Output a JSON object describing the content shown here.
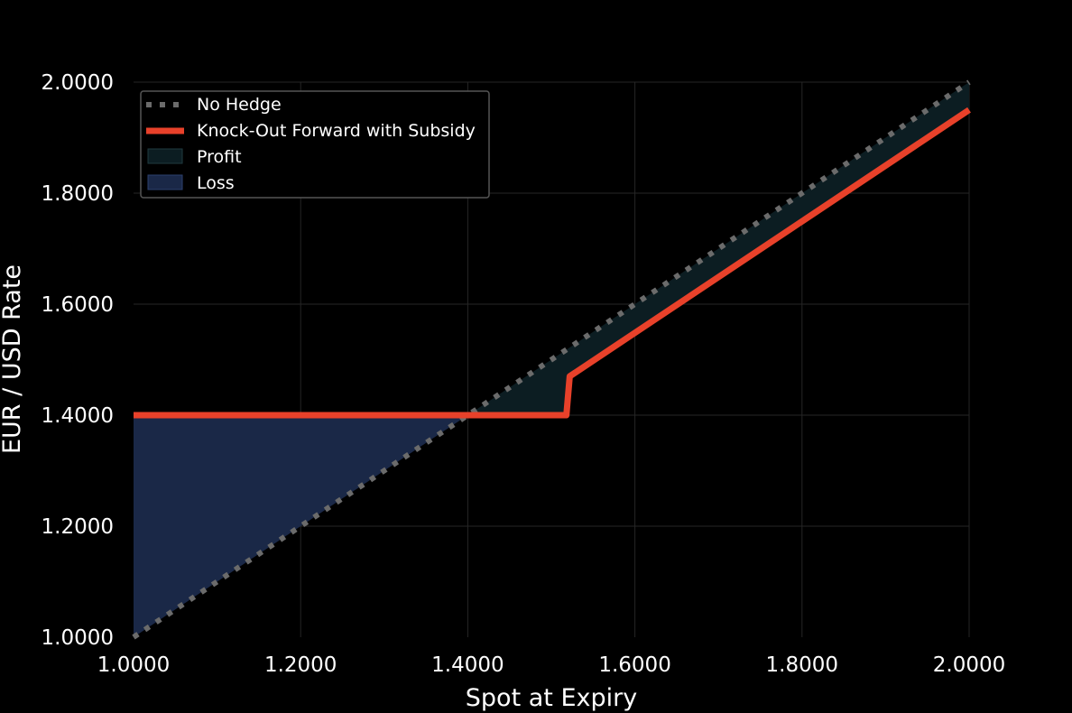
{
  "chart_data": {
    "type": "line",
    "title": "",
    "xlabel": "Spot at Expiry",
    "ylabel": "EUR / USD Rate",
    "xlim": [
      1.0,
      2.0
    ],
    "ylim": [
      1.0,
      2.0
    ],
    "x_ticks": [
      1.0,
      1.2,
      1.4,
      1.6,
      1.8,
      2.0
    ],
    "y_ticks": [
      1.0,
      1.2,
      1.4,
      1.6,
      1.8,
      2.0
    ],
    "x_tick_labels": [
      "1.0000",
      "1.2000",
      "1.4000",
      "1.6000",
      "1.8000",
      "2.0000"
    ],
    "y_tick_labels": [
      "1.0000",
      "1.2000",
      "1.4000",
      "1.6000",
      "1.8000",
      "2.0000"
    ],
    "grid": true,
    "legend_position": "top-left",
    "series": [
      {
        "name": "No Hedge",
        "style": "dotted",
        "color": "#6b6b6b",
        "x": [
          1.0,
          2.0
        ],
        "y": [
          1.0,
          2.0
        ]
      },
      {
        "name": "Knock-Out Forward with Subsidy",
        "style": "solid",
        "color": "#e8412a",
        "x": [
          1.0,
          1.518,
          1.522,
          2.0
        ],
        "y": [
          1.4,
          1.4,
          1.47,
          1.95
        ]
      }
    ],
    "fills": [
      {
        "name": "Profit",
        "color": "#0c1d22"
      },
      {
        "name": "Loss",
        "color": "#1a2847"
      }
    ]
  }
}
